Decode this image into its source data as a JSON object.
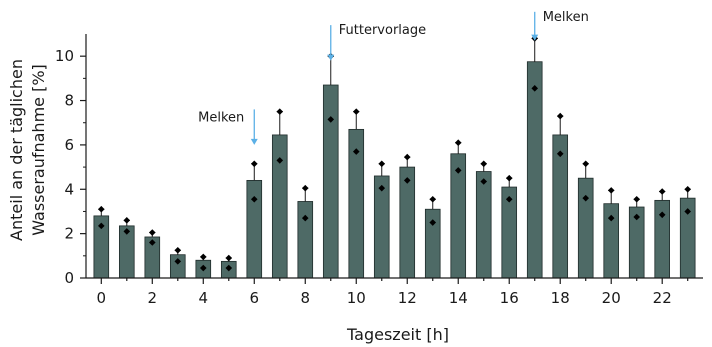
{
  "chart_data": {
    "type": "bar",
    "xlabel": "Tageszeit [h]",
    "ylabel_lines": [
      "Anteil an der täglichen",
      "Wasseraufnahme [%]"
    ],
    "x": [
      0,
      1,
      2,
      3,
      4,
      5,
      6,
      7,
      8,
      9,
      10,
      11,
      12,
      13,
      14,
      15,
      16,
      17,
      18,
      19,
      20,
      21,
      22,
      23
    ],
    "values": [
      2.8,
      2.35,
      1.85,
      1.05,
      0.8,
      0.75,
      4.4,
      6.45,
      3.45,
      8.7,
      6.7,
      4.6,
      5.0,
      3.1,
      5.6,
      4.8,
      4.1,
      9.75,
      6.45,
      4.5,
      3.35,
      3.2,
      3.5,
      3.6
    ],
    "error_upper": [
      3.1,
      2.6,
      2.05,
      1.25,
      0.95,
      0.9,
      5.15,
      7.5,
      4.05,
      10.0,
      7.5,
      5.15,
      5.45,
      3.55,
      6.1,
      5.15,
      4.5,
      10.8,
      7.3,
      5.15,
      3.95,
      3.55,
      3.9,
      4.0
    ],
    "points_high": [
      3.1,
      2.6,
      2.05,
      1.25,
      0.95,
      0.9,
      5.15,
      7.5,
      4.05,
      10.0,
      7.5,
      5.15,
      5.45,
      3.55,
      6.1,
      5.15,
      4.5,
      10.8,
      7.3,
      5.15,
      3.95,
      3.55,
      3.9,
      4.0
    ],
    "points_low": [
      2.35,
      2.1,
      1.6,
      0.75,
      0.45,
      0.45,
      3.55,
      5.3,
      2.7,
      7.15,
      5.7,
      4.05,
      4.4,
      2.5,
      4.85,
      4.35,
      3.55,
      8.55,
      5.6,
      3.6,
      2.7,
      2.75,
      2.85,
      3.0
    ],
    "xticks": [
      0,
      2,
      4,
      6,
      8,
      10,
      12,
      14,
      16,
      18,
      20,
      22
    ],
    "xtick_labels": [
      "0",
      "2",
      "4",
      "6",
      "8",
      "10",
      "12",
      "14",
      "16",
      "18",
      "20",
      "22"
    ],
    "yticks": [
      0,
      2,
      4,
      6,
      8,
      10
    ],
    "ytick_labels": [
      "0",
      "2",
      "4",
      "6",
      "8",
      "10"
    ],
    "ylim": [
      0,
      11
    ],
    "xlim": [
      -0.6,
      23.6
    ],
    "grid": false,
    "annotations": [
      {
        "label": "Melken",
        "x": 6,
        "arrow_from": 7.6,
        "arrow_to": 6.0,
        "text_side": "left"
      },
      {
        "label": "Futtervorlage",
        "x": 9,
        "arrow_from": 11.4,
        "arrow_to": 9.8,
        "text_side": "right"
      },
      {
        "label": "Melken",
        "x": 17,
        "arrow_from": 12.0,
        "arrow_to": 10.7,
        "text_side": "right"
      }
    ],
    "colors": {
      "bar": "#4e6a66",
      "arrow": "#5bb0e6",
      "point": "#000000"
    }
  }
}
